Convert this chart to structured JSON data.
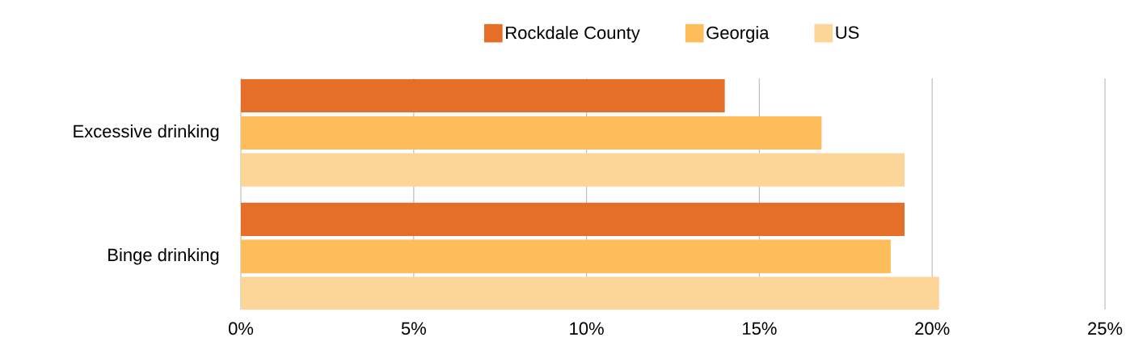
{
  "chart_data": {
    "type": "bar",
    "orientation": "horizontal",
    "categories": [
      "Excessive drinking",
      "Binge drinking"
    ],
    "series": [
      {
        "name": "Rockdale County",
        "color": "#e56f28",
        "values": [
          14.0,
          19.2
        ]
      },
      {
        "name": "Georgia",
        "color": "#fdbd5a",
        "values": [
          16.8,
          18.8
        ]
      },
      {
        "name": "US",
        "color": "#fdd599",
        "values": [
          19.2,
          20.2
        ]
      }
    ],
    "xlim": [
      0,
      25
    ],
    "xticks": [
      {
        "value": 0,
        "label": "0%"
      },
      {
        "value": 5,
        "label": "5%"
      },
      {
        "value": 10,
        "label": "10%"
      },
      {
        "value": 15,
        "label": "15%"
      },
      {
        "value": 20,
        "label": "20%"
      },
      {
        "value": 25,
        "label": "25%"
      }
    ],
    "grid": "x",
    "legend": "top"
  }
}
